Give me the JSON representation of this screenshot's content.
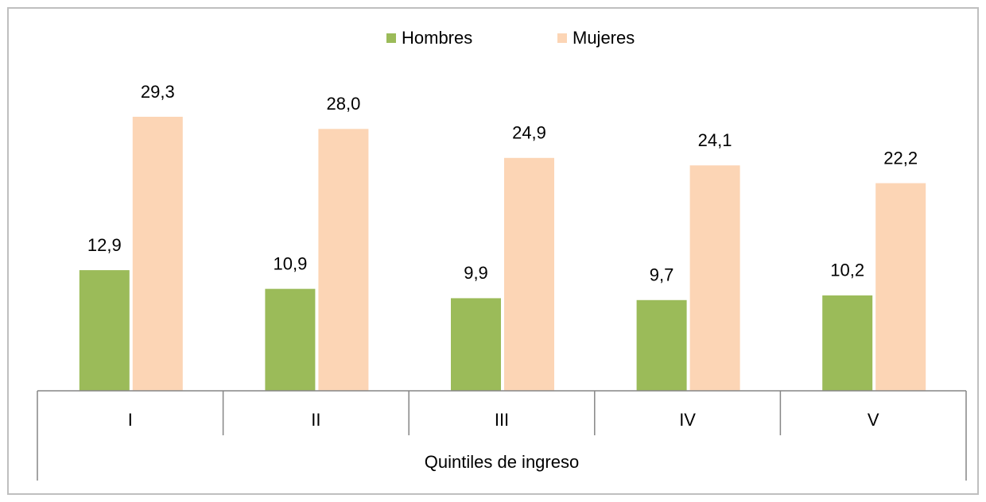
{
  "chart_data": {
    "type": "bar",
    "categories": [
      "I",
      "II",
      "III",
      "IV",
      "V"
    ],
    "xlabel": "Quintiles de ingreso",
    "series": [
      {
        "name": "Hombres",
        "color": "#9bbb59",
        "values": [
          12.9,
          10.9,
          9.9,
          9.7,
          10.2
        ],
        "value_labels": [
          "12,9",
          "10,9",
          "9,9",
          "9,7",
          "10,2"
        ]
      },
      {
        "name": "Mujeres",
        "color": "#fcd5b5",
        "values": [
          29.3,
          28.0,
          24.9,
          24.1,
          22.2
        ],
        "value_labels": [
          "29,3",
          "28,0",
          "24,9",
          "24,1",
          "22,2"
        ]
      }
    ],
    "legend": "top"
  }
}
